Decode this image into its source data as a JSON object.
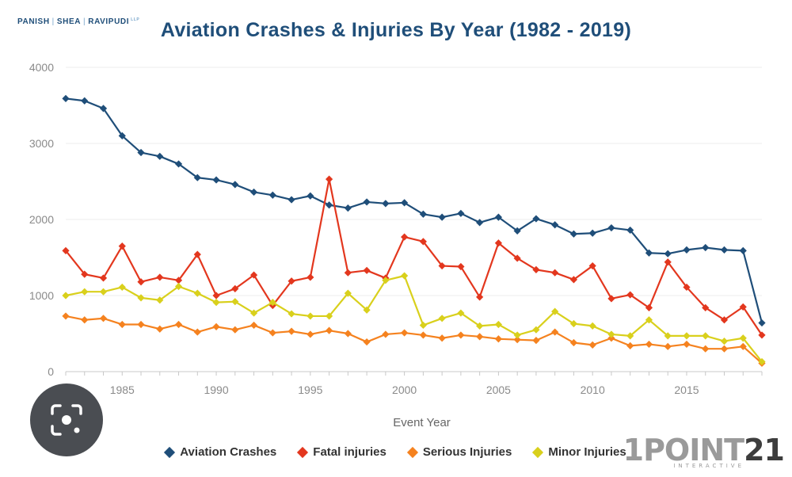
{
  "header": {
    "logo_parts": [
      "PANISH",
      "SHEA",
      "RAVIPUDI"
    ],
    "logo_suffix": "LLP"
  },
  "brand": {
    "name_part1": "1POINT",
    "name_part2": "21",
    "tagline": "INTERACTIVE"
  },
  "chart_data": {
    "type": "line",
    "title": "Aviation Crashes & Injuries By Year (1982 - 2019)",
    "xlabel": "Event Year",
    "ylabel": "",
    "xlim": [
      1982,
      2019
    ],
    "ylim": [
      0,
      4000
    ],
    "xticks": [
      1985,
      1990,
      1995,
      2000,
      2005,
      2010,
      2015
    ],
    "yticks": [
      0,
      1000,
      2000,
      3000,
      4000
    ],
    "grid": true,
    "legend_position": "bottom",
    "x": [
      1982,
      1983,
      1984,
      1985,
      1986,
      1987,
      1988,
      1989,
      1990,
      1991,
      1992,
      1993,
      1994,
      1995,
      1996,
      1997,
      1998,
      1999,
      2000,
      2001,
      2002,
      2003,
      2004,
      2005,
      2006,
      2007,
      2008,
      2009,
      2010,
      2011,
      2012,
      2013,
      2014,
      2015,
      2016,
      2017,
      2018,
      2019
    ],
    "series": [
      {
        "name": "Aviation Crashes",
        "color": "#1f4e79",
        "values": [
          3590,
          3560,
          3460,
          3100,
          2880,
          2830,
          2730,
          2550,
          2520,
          2460,
          2360,
          2320,
          2260,
          2310,
          2190,
          2150,
          2230,
          2210,
          2220,
          2070,
          2030,
          2080,
          1960,
          2030,
          1850,
          2010,
          1930,
          1810,
          1820,
          1890,
          1860,
          1560,
          1550,
          1600,
          1630,
          1600,
          1590,
          640
        ]
      },
      {
        "name": "Fatal injuries",
        "color": "#e3371e",
        "values": [
          1590,
          1280,
          1230,
          1650,
          1180,
          1240,
          1200,
          1540,
          1000,
          1090,
          1270,
          870,
          1190,
          1240,
          2530,
          1300,
          1330,
          1230,
          1770,
          1710,
          1390,
          1380,
          980,
          1690,
          1490,
          1340,
          1300,
          1210,
          1390,
          960,
          1010,
          840,
          1440,
          1110,
          840,
          680,
          850,
          480
        ]
      },
      {
        "name": "Serious Injuries",
        "color": "#f5821f",
        "values": [
          730,
          680,
          700,
          620,
          620,
          560,
          620,
          520,
          590,
          550,
          610,
          510,
          530,
          490,
          540,
          500,
          390,
          490,
          510,
          480,
          440,
          480,
          460,
          430,
          420,
          410,
          520,
          380,
          350,
          440,
          340,
          360,
          330,
          360,
          300,
          300,
          330,
          110
        ]
      },
      {
        "name": "Minor Injuries",
        "color": "#d9d01c",
        "values": [
          1000,
          1050,
          1050,
          1110,
          970,
          940,
          1120,
          1030,
          910,
          920,
          770,
          910,
          760,
          730,
          730,
          1030,
          810,
          1200,
          1260,
          610,
          700,
          770,
          600,
          620,
          480,
          550,
          790,
          630,
          600,
          490,
          470,
          680,
          470,
          470,
          470,
          400,
          440,
          130
        ]
      }
    ]
  }
}
